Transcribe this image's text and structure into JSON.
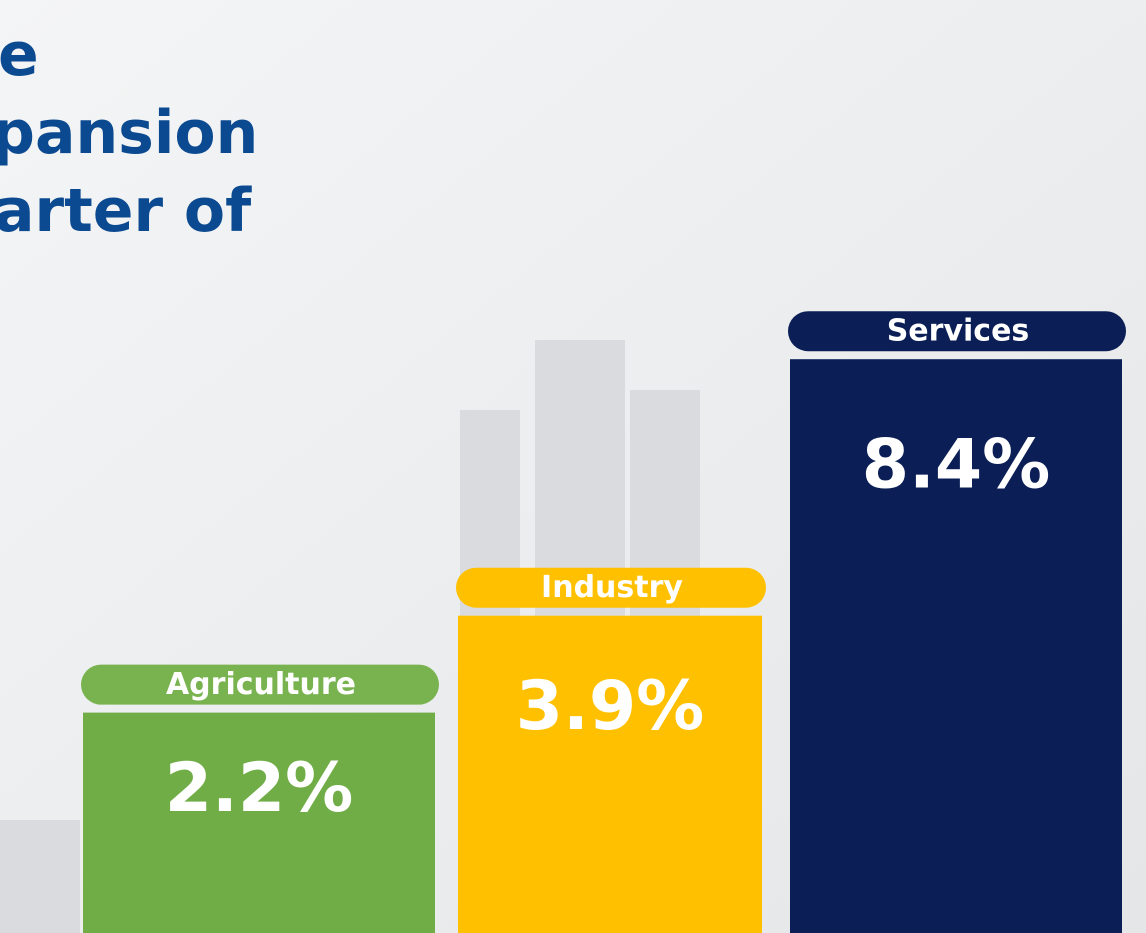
{
  "chart_data": {
    "type": "bar",
    "title_lines": [
      "e",
      "pansion",
      "arter of"
    ],
    "categories": [
      "Agriculture",
      "Industry",
      "Services"
    ],
    "values": [
      2.2,
      3.9,
      8.4
    ],
    "value_labels": [
      "2.2%",
      "3.9%",
      "8.4%"
    ],
    "colors": [
      "#70ad47",
      "#ffc000",
      "#0b1f56"
    ]
  }
}
